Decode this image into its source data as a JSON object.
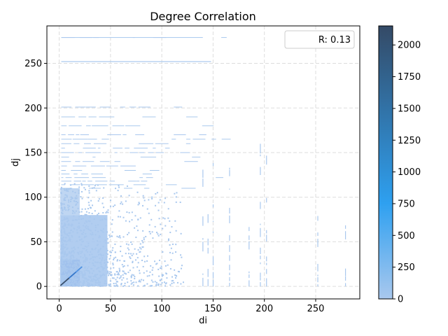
{
  "chart_data": {
    "type": "heatmap",
    "title": "Degree Correlation",
    "xlabel": "di",
    "ylabel": "dj",
    "xlim": [
      -12,
      293
    ],
    "ylim": [
      -14,
      292
    ],
    "xticks": [
      0,
      50,
      100,
      150,
      200,
      250
    ],
    "yticks": [
      0,
      50,
      100,
      150,
      200,
      250
    ],
    "grid": true,
    "legend": {
      "placement": "top-right",
      "text": "R: 0.13"
    },
    "colorbar": {
      "range": [
        0,
        2150
      ],
      "ticks": [
        0,
        250,
        500,
        750,
        1000,
        1250,
        1500,
        1750,
        2000
      ],
      "colors": [
        "#a9c8ee",
        "#2ea0f0",
        "#344a66"
      ]
    },
    "hline_rows": [
      279,
      252,
      201,
      190,
      180,
      170,
      165,
      160,
      155,
      150,
      145,
      140,
      135,
      130,
      126,
      122,
      118,
      114,
      110
    ],
    "vline_cols": [
      252,
      279,
      202,
      196,
      185,
      166,
      150,
      145,
      140
    ],
    "diagonal_max": 2150
  }
}
